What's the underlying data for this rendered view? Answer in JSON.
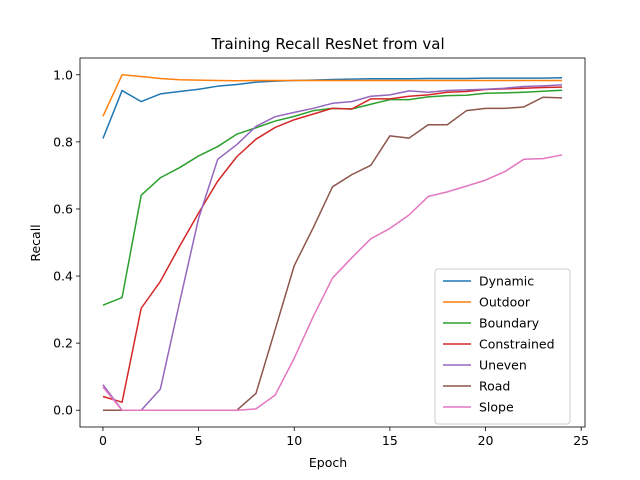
{
  "chart_data": {
    "type": "line",
    "title": "Training Recall ResNet from val",
    "xlabel": "Epoch",
    "ylabel": "Recall",
    "xlim": [
      -1.2,
      25.2
    ],
    "ylim": [
      -0.05,
      1.05
    ],
    "xticks": [
      0,
      5,
      10,
      15,
      20,
      25
    ],
    "yticks": [
      0.0,
      0.2,
      0.4,
      0.6,
      0.8,
      1.0
    ],
    "grid": false,
    "legend": "lower-right",
    "x": [
      0,
      1,
      2,
      3,
      4,
      5,
      6,
      7,
      8,
      9,
      10,
      11,
      12,
      13,
      14,
      15,
      16,
      17,
      18,
      19,
      20,
      21,
      22,
      23,
      24
    ],
    "series": [
      {
        "name": "Dynamic",
        "color": "#1f77b4",
        "values": [
          0.81,
          0.953,
          0.92,
          0.943,
          0.95,
          0.957,
          0.966,
          0.971,
          0.978,
          0.981,
          0.983,
          0.984,
          0.986,
          0.987,
          0.988,
          0.988,
          0.988,
          0.989,
          0.989,
          0.989,
          0.99,
          0.99,
          0.99,
          0.99,
          0.991
        ]
      },
      {
        "name": "Outdoor",
        "color": "#ff7f0e",
        "values": [
          0.876,
          1.0,
          0.995,
          0.989,
          0.985,
          0.984,
          0.983,
          0.982,
          0.983,
          0.983,
          0.983,
          0.983,
          0.983,
          0.983,
          0.983,
          0.983,
          0.983,
          0.983,
          0.983,
          0.983,
          0.983,
          0.983,
          0.983,
          0.983,
          0.983
        ]
      },
      {
        "name": "Boundary",
        "color": "#2ca02c",
        "values": [
          0.313,
          0.336,
          0.641,
          0.693,
          0.723,
          0.758,
          0.786,
          0.823,
          0.842,
          0.862,
          0.876,
          0.893,
          0.9,
          0.898,
          0.912,
          0.926,
          0.926,
          0.934,
          0.938,
          0.939,
          0.945,
          0.946,
          0.948,
          0.951,
          0.954
        ]
      },
      {
        "name": "Constrained",
        "color": "#d62728",
        "values": [
          0.041,
          0.024,
          0.304,
          0.384,
          0.488,
          0.588,
          0.683,
          0.756,
          0.808,
          0.843,
          0.866,
          0.883,
          0.9,
          0.898,
          0.928,
          0.928,
          0.936,
          0.94,
          0.948,
          0.95,
          0.956,
          0.958,
          0.96,
          0.962,
          0.963
        ]
      },
      {
        "name": "Uneven",
        "color": "#9467bd",
        "values": [
          0.076,
          0.0,
          0.0,
          0.063,
          0.32,
          0.572,
          0.748,
          0.792,
          0.846,
          0.875,
          0.888,
          0.9,
          0.915,
          0.92,
          0.936,
          0.94,
          0.952,
          0.948,
          0.953,
          0.955,
          0.957,
          0.96,
          0.965,
          0.967,
          0.97
        ]
      },
      {
        "name": "Road",
        "color": "#8c564b",
        "values": [
          0.0,
          0.0,
          0.0,
          0.0,
          0.0,
          0.0,
          0.0,
          0.0,
          0.05,
          0.24,
          0.431,
          0.545,
          0.666,
          0.702,
          0.73,
          0.818,
          0.811,
          0.851,
          0.851,
          0.893,
          0.9,
          0.9,
          0.904,
          0.933,
          0.931
        ]
      },
      {
        "name": "Slope",
        "color": "#e377c2",
        "values": [
          0.069,
          0.0,
          0.0,
          0.0,
          0.0,
          0.0,
          0.0,
          0.0,
          0.004,
          0.045,
          0.155,
          0.28,
          0.394,
          0.454,
          0.511,
          0.542,
          0.582,
          0.637,
          0.651,
          0.668,
          0.686,
          0.711,
          0.748,
          0.75,
          0.761
        ]
      }
    ]
  }
}
